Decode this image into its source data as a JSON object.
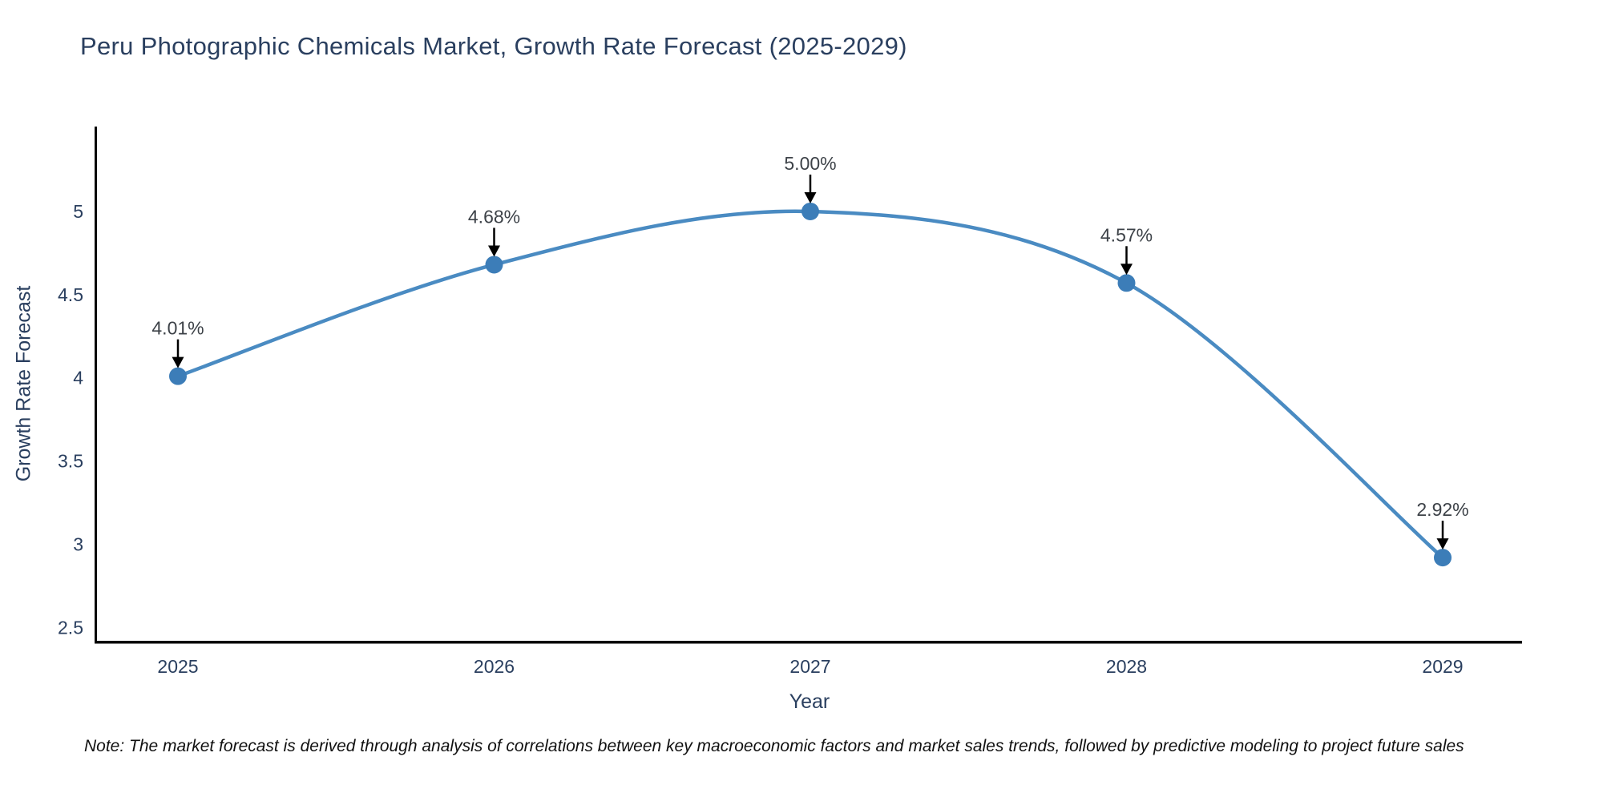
{
  "note": "Note: The market forecast is derived through analysis of correlations between key macroeconomic factors and market sales trends, followed by predictive modeling to project future sales",
  "chart_data": {
    "type": "line",
    "title": "Peru Photographic Chemicals Market, Growth Rate Forecast (2025-2029)",
    "xlabel": "Year",
    "ylabel": "Growth Rate Forecast",
    "categories": [
      "2025",
      "2026",
      "2027",
      "2028",
      "2029"
    ],
    "series": [
      {
        "name": "Growth Rate Forecast",
        "values": [
          4.01,
          4.68,
          5.0,
          4.57,
          2.92
        ]
      }
    ],
    "point_labels": [
      "4.01%",
      "4.68%",
      "5.00%",
      "4.57%",
      "2.92%"
    ],
    "yticks": [
      2.5,
      3,
      3.5,
      4,
      4.5,
      5
    ],
    "ylim": [
      2.42,
      5.51
    ],
    "line_shape": "spline",
    "grid": false,
    "legend": "none",
    "annotation_style": "down-arrow",
    "colors": {
      "line": "#4a8bc2",
      "marker": "#3c7db8",
      "axis_text": "#2a3f5f",
      "annotation_text": "#3d4248",
      "arrow": "#000000",
      "spine": "#000000",
      "background": "#ffffff"
    }
  }
}
